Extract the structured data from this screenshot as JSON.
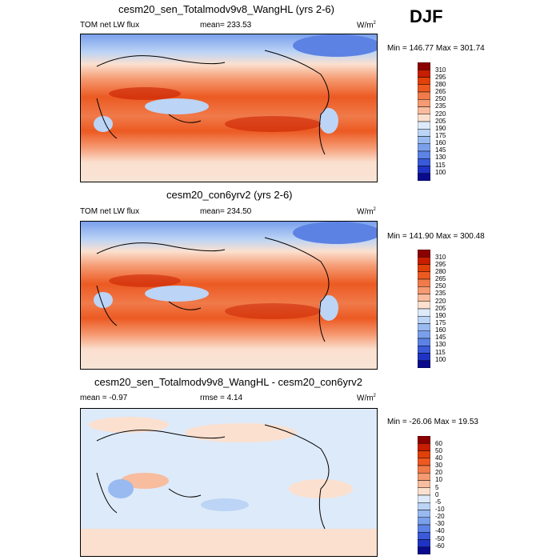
{
  "season": "DJF",
  "units_label": "W/m",
  "units_sup": "2",
  "panels": [
    {
      "title": "cesm20_sen_Totalmodv9v8_WangHL (yrs 2-6)",
      "left_label": "TOM net LW flux",
      "center_label": "mean= 233.53",
      "minmax": "Min = 146.77 Max = 301.74"
    },
    {
      "title": "cesm20_con6yrv2 (yrs 2-6)",
      "left_label": "TOM net LW flux",
      "center_label": "mean= 234.50",
      "minmax": "Min = 141.90 Max = 300.48"
    },
    {
      "title": "cesm20_sen_Totalmodv9v8_WangHL - cesm20_con6yrv2",
      "left_label": "mean =  -0.97",
      "center_label": "rmse =   4.14",
      "minmax": "Min = -26.06 Max =  19.53"
    }
  ],
  "chart_data": [
    {
      "type": "heatmap",
      "title": "cesm20_sen_Totalmodv9v8_WangHL (yrs 2-6)",
      "variable": "TOM net LW flux",
      "units": "W/m2",
      "mean": 233.53,
      "min": 146.77,
      "max": 301.74,
      "colorbar_levels": [
        310,
        295,
        280,
        265,
        250,
        235,
        220,
        205,
        190,
        175,
        160,
        145,
        130,
        115,
        100
      ]
    },
    {
      "type": "heatmap",
      "title": "cesm20_con6yrv2 (yrs 2-6)",
      "variable": "TOM net LW flux",
      "units": "W/m2",
      "mean": 234.5,
      "min": 141.9,
      "max": 300.48,
      "colorbar_levels": [
        310,
        295,
        280,
        265,
        250,
        235,
        220,
        205,
        190,
        175,
        160,
        145,
        130,
        115,
        100
      ]
    },
    {
      "type": "heatmap",
      "title": "cesm20_sen_Totalmodv9v8_WangHL - cesm20_con6yrv2",
      "units": "W/m2",
      "mean": -0.97,
      "rmse": 4.14,
      "min": -26.06,
      "max": 19.53,
      "colorbar_levels": [
        60,
        50,
        40,
        30,
        20,
        10,
        5,
        0,
        -5,
        -10,
        -20,
        -30,
        -40,
        -50,
        -60
      ]
    }
  ],
  "colors": {
    "abs_scale": [
      "#8b0000",
      "#c81e00",
      "#e0400a",
      "#ec5a22",
      "#f07a4a",
      "#f59a72",
      "#f8bc9e",
      "#fbe0cf",
      "#ddeaf9",
      "#bcd4f5",
      "#98baf0",
      "#7aa0ec",
      "#5c82e4",
      "#3a5ad8",
      "#1f34c4",
      "#0a0a8c"
    ],
    "diff_scale": [
      "#8b0000",
      "#c81e00",
      "#e0400a",
      "#ec5a22",
      "#f07a4a",
      "#f59a72",
      "#f8bc9e",
      "#fbe0cf",
      "#ddeaf9",
      "#bcd4f5",
      "#98baf0",
      "#7aa0ec",
      "#5c82e4",
      "#3a5ad8",
      "#1f34c4",
      "#0a0a8c"
    ]
  }
}
